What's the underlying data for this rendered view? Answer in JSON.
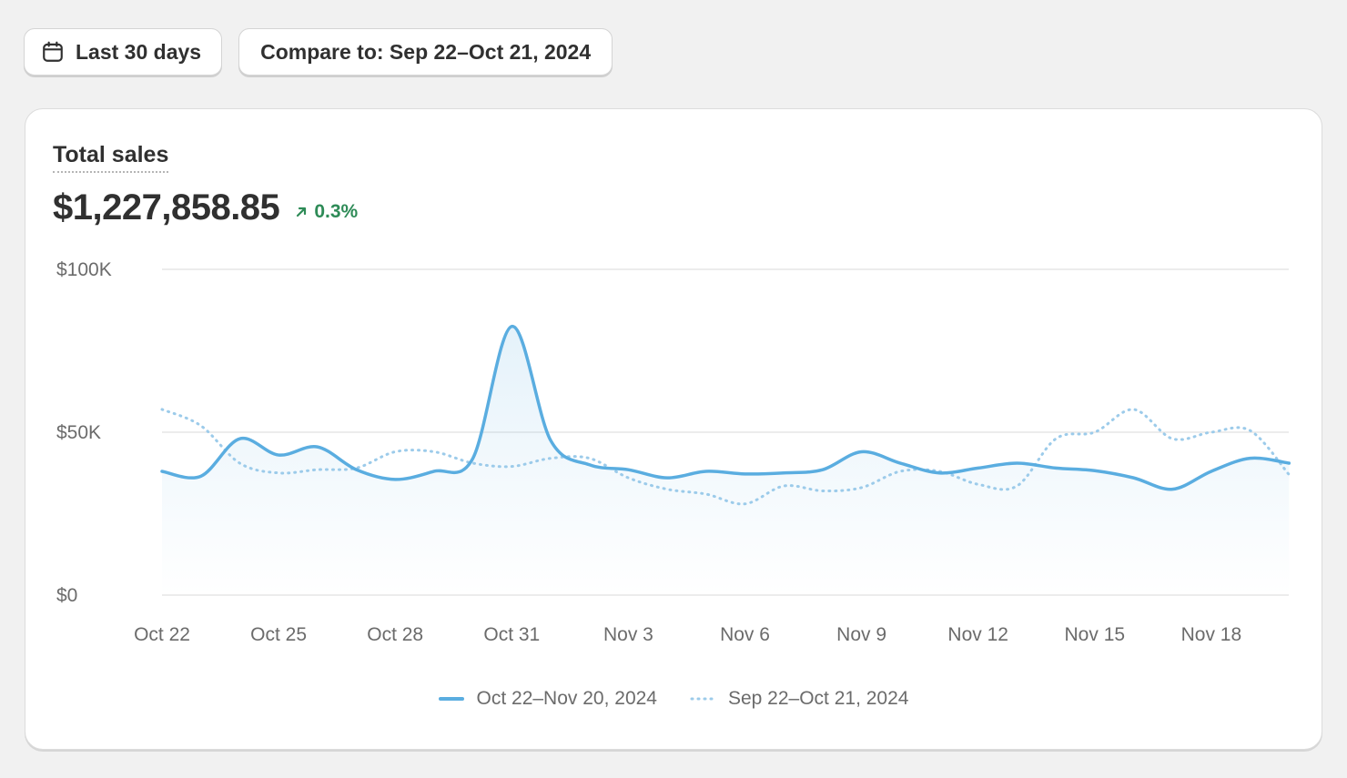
{
  "toolbar": {
    "date_range_label": "Last 30 days",
    "compare_label": "Compare to: Sep 22–Oct 21, 2024"
  },
  "card": {
    "title": "Total sales",
    "value": "$1,227,858.85",
    "change": "0.3%",
    "change_color": "#2e8b57"
  },
  "colors": {
    "current": "#5aade0",
    "previous": "#9ccbea",
    "grid": "#e6e6e6"
  },
  "chart_data": {
    "type": "line",
    "title": "",
    "xlabel": "",
    "ylabel": "",
    "ylim": [
      0,
      100000
    ],
    "yticks": [
      {
        "value": 100000,
        "label": "$100K"
      },
      {
        "value": 50000,
        "label": "$50K"
      },
      {
        "value": 0,
        "label": "$0"
      }
    ],
    "xticks": [
      {
        "index": 0,
        "label": "Oct 22"
      },
      {
        "index": 3,
        "label": "Oct 25"
      },
      {
        "index": 6,
        "label": "Oct 28"
      },
      {
        "index": 9,
        "label": "Oct 31"
      },
      {
        "index": 12,
        "label": "Nov 3"
      },
      {
        "index": 15,
        "label": "Nov 6"
      },
      {
        "index": 18,
        "label": "Nov 9"
      },
      {
        "index": 21,
        "label": "Nov 12"
      },
      {
        "index": 24,
        "label": "Nov 15"
      },
      {
        "index": 27,
        "label": "Nov 18"
      }
    ],
    "grid": true,
    "legend_position": "bottom-center",
    "series": [
      {
        "name": "Oct 22–Nov 20, 2024",
        "style": "solid",
        "values": [
          38000,
          36500,
          48000,
          43000,
          45500,
          38500,
          35500,
          38000,
          42000,
          82500,
          47500,
          40000,
          38500,
          36000,
          38000,
          37200,
          37500,
          38500,
          44000,
          40500,
          37500,
          39000,
          40500,
          39000,
          38200,
          36000,
          32500,
          38000,
          42000,
          40500
        ]
      },
      {
        "name": "Sep 22–Oct 21, 2024",
        "style": "dotted",
        "values": [
          57000,
          52000,
          40500,
          37500,
          38500,
          39000,
          44000,
          44000,
          40500,
          39500,
          42000,
          42000,
          36000,
          32500,
          31000,
          28000,
          33500,
          32000,
          33000,
          38000,
          38000,
          34000,
          33500,
          48000,
          50000,
          57000,
          48000,
          50000,
          50500,
          37000
        ]
      }
    ]
  }
}
